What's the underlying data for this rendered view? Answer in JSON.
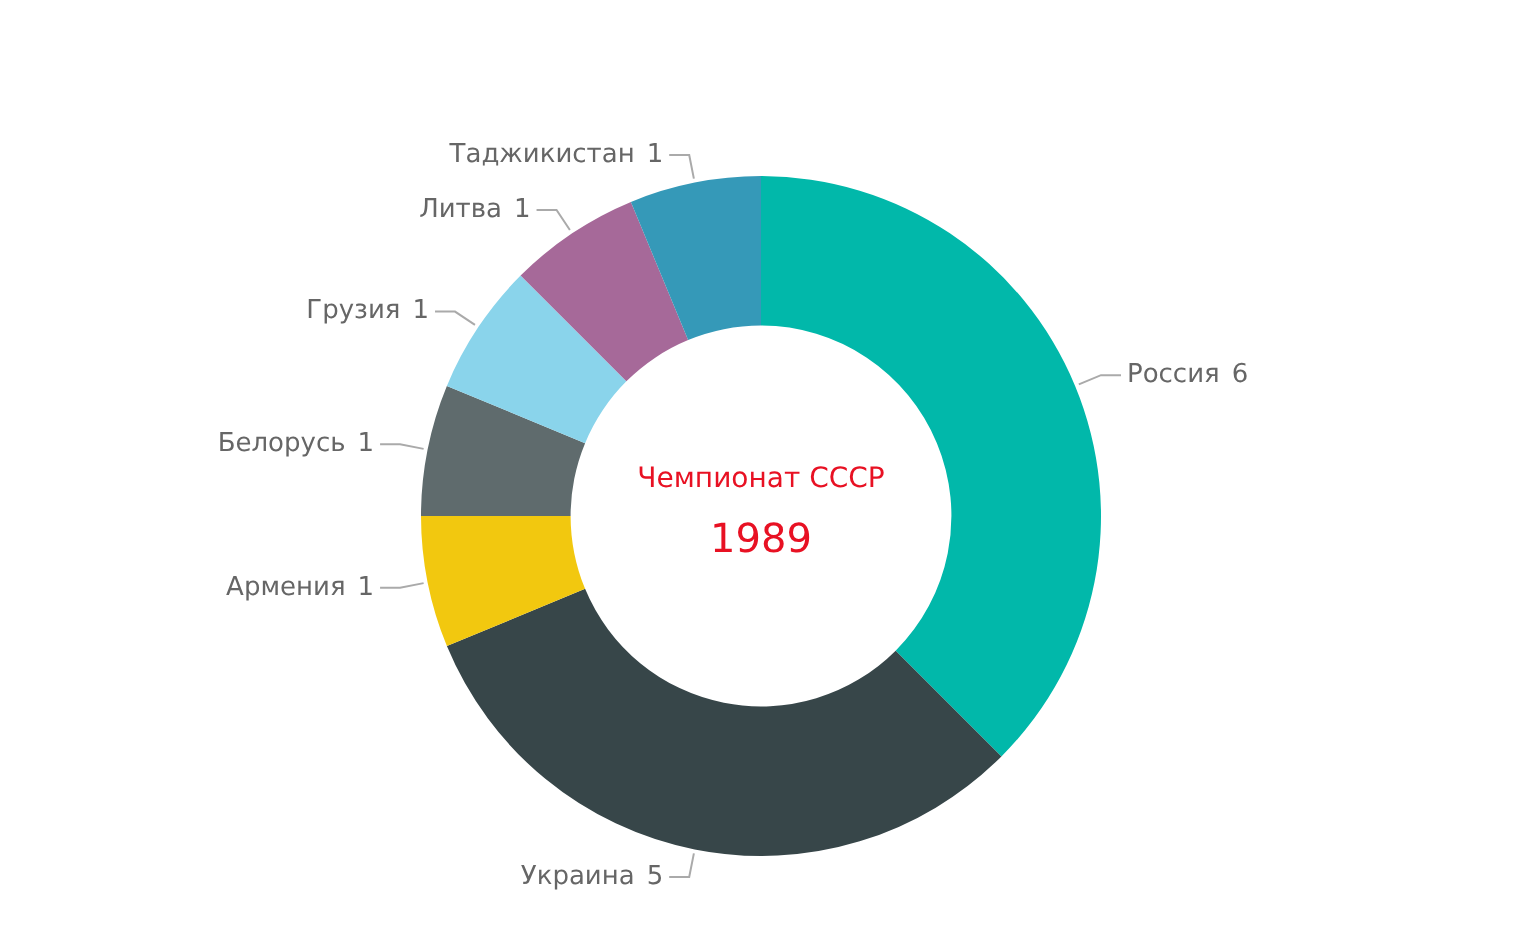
{
  "chart_data": {
    "type": "donut",
    "title": "Чемпионат СССР",
    "subtitle": "1989",
    "categories": [
      "Россия",
      "Украина",
      "Армения",
      "Белорусь",
      "Грузия",
      "Литва",
      "Таджикистан"
    ],
    "values": [
      6,
      5,
      1,
      1,
      1,
      1,
      1
    ],
    "colors": [
      "#01b8aa",
      "#374649",
      "#f2c80f",
      "#5f6b6d",
      "#8ad4eb",
      "#a66999",
      "#3599b8"
    ],
    "data_labels": true,
    "legend": false
  }
}
